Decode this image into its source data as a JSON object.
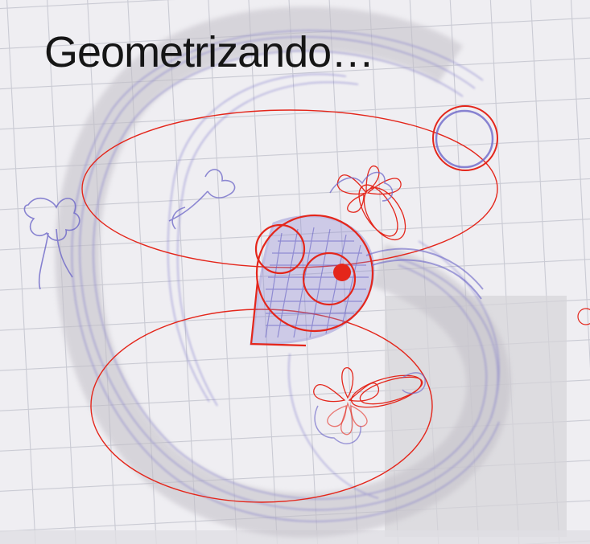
{
  "title": "Geometrizando…",
  "colors": {
    "paper": "#efeef2",
    "grid": "#cfd0d9",
    "pencil": "#6d67c8",
    "construction": "#e4261b",
    "accent_dot": "#e4261b"
  },
  "icons": [
    "flower-sketch",
    "eye-sketch",
    "bird-sketch"
  ]
}
